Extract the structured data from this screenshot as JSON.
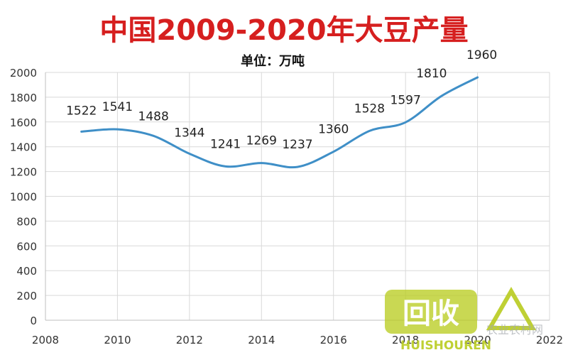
{
  "chart_data": {
    "type": "line",
    "title": "中国2009-2020年大豆产量",
    "subtitle": "单位：万吨",
    "xlabel": "",
    "ylabel": "",
    "x": [
      2009,
      2010,
      2011,
      2012,
      2013,
      2014,
      2015,
      2016,
      2017,
      2018,
      2019,
      2020
    ],
    "series": [
      {
        "values": [
          1522,
          1541,
          1488,
          1344,
          1241,
          1269,
          1237,
          1360,
          1528,
          1597,
          1810,
          1960
        ]
      }
    ],
    "xlim": [
      2008,
      2022
    ],
    "ylim": [
      0,
      2000
    ],
    "xticks": [
      2008,
      2010,
      2012,
      2014,
      2016,
      2018,
      2020,
      2022
    ],
    "yticks": [
      0,
      200,
      400,
      600,
      800,
      1000,
      1200,
      1400,
      1600,
      1800,
      2000
    ],
    "grid": true,
    "legend": "none",
    "line_color": "#3f8fc7",
    "grid_color": "#d9d9d9"
  },
  "watermark": {
    "logo_text": "回收",
    "brand_text": "HUISHOUREN",
    "site_text": "农业农村网",
    "color": "#b9cc1f"
  }
}
